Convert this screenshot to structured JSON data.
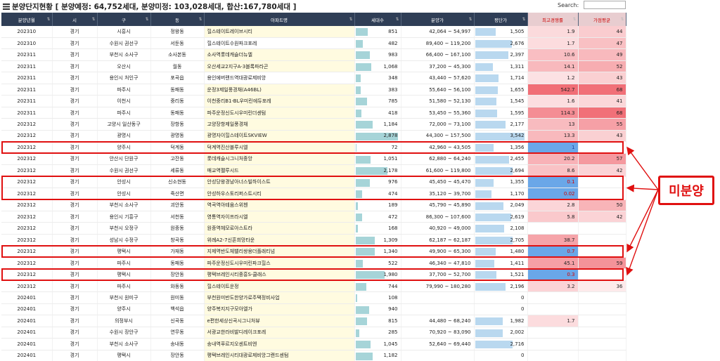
{
  "header": {
    "title": "분양단지현황 [ 분양예정: 64,752세대, 분양미정: 103,028세대, 합산:167,780세대 ]",
    "search_label": "Search:",
    "search_value": ""
  },
  "columns": [
    "분양년월",
    "시",
    "구",
    "동",
    "아파트명",
    "세대수",
    "분양가",
    "평단가",
    "최고경쟁률",
    "가점평균"
  ],
  "colors": {
    "header_bg": "#2f3e56",
    "highlight_border": "#e01010",
    "callout_text": "#e01010"
  },
  "rows": [
    {
      "ym": "202310",
      "si": "경기",
      "gu": "시흥시",
      "dong": "정왕동",
      "apt": "힐스테이트레이브시티",
      "units": "851",
      "price": "42,064 ~ 54,997",
      "ppa": "1,505",
      "comp": "1.9",
      "score": "44"
    },
    {
      "ym": "202310",
      "si": "경기",
      "gu": "수원시 권선구",
      "dong": "서둔동",
      "apt": "힐스테이트수원파크포레",
      "units": "482",
      "price": "89,400 ~ 119,200",
      "ppa": "2,676",
      "comp": "1.7",
      "score": "47"
    },
    {
      "ym": "202311",
      "si": "경기",
      "gu": "부천시 소사구",
      "dong": "소사본동",
      "apt": "소사역롯데캐슬더뉴엘",
      "units": "983",
      "price": "66,400 ~ 167,100",
      "ppa": "2,397",
      "comp": "10.6",
      "score": "49"
    },
    {
      "ym": "202311",
      "si": "경기",
      "gu": "오산시",
      "dong": "궐동",
      "apt": "오산세교2지구A-3블록파라곤",
      "units": "1,068",
      "price": "37,200 ~ 45,300",
      "ppa": "1,311",
      "comp": "14.1",
      "score": "52"
    },
    {
      "ym": "202311",
      "si": "경기",
      "gu": "용인시 처인구",
      "dong": "포곡읍",
      "apt": "용인에버랜드역대광로제비앙",
      "units": "348",
      "price": "43,440 ~ 57,620",
      "ppa": "1,714",
      "comp": "1.2",
      "score": "43"
    },
    {
      "ym": "202311",
      "si": "경기",
      "gu": "파주시",
      "dong": "동패동",
      "apt": "운정3제일풍경채(A46BL)",
      "units": "383",
      "price": "55,640 ~ 56,100",
      "ppa": "1,655",
      "comp": "542.7",
      "score": "68"
    },
    {
      "ym": "202311",
      "si": "경기",
      "gu": "이천시",
      "dong": "중리동",
      "apt": "이천중리B1-BL우미린에듀포레",
      "units": "785",
      "price": "51,580 ~ 52,130",
      "ppa": "1,545",
      "comp": "1.6",
      "score": "41"
    },
    {
      "ym": "202311",
      "si": "경기",
      "gu": "파주시",
      "dong": "동패동",
      "apt": "파주운정신도시우미린더센텀",
      "units": "418",
      "price": "53,450 ~ 55,360",
      "ppa": "1,595",
      "comp": "114.3",
      "score": "68"
    },
    {
      "ym": "202312",
      "si": "경기",
      "gu": "고양시 일산동구",
      "dong": "장항동",
      "apt": "고양장항제일풍경채",
      "units": "1,184",
      "price": "72,000 ~ 73,100",
      "ppa": "2,177",
      "comp": "13",
      "score": "55"
    },
    {
      "ym": "202312",
      "si": "경기",
      "gu": "광명시",
      "dong": "광명동",
      "apt": "광명자이힐스테이트SKVIEW",
      "units": "2,878",
      "price": "44,300 ~ 157,500",
      "ppa": "3,542",
      "comp": "13.3",
      "score": "43"
    },
    {
      "ym": "202312",
      "si": "경기",
      "gu": "양주시",
      "dong": "덕계동",
      "apt": "덕계역진산블루시엘",
      "units": "72",
      "price": "42,960 ~ 43,505",
      "ppa": "1,356",
      "comp": "1",
      "score": ""
    },
    {
      "ym": "202312",
      "si": "경기",
      "gu": "안산시 단원구",
      "dong": "고잔동",
      "apt": "롯데캐슬시그니처중앙",
      "units": "1,051",
      "price": "62,880 ~ 64,240",
      "ppa": "2,455",
      "comp": "20.2",
      "score": "57"
    },
    {
      "ym": "202312",
      "si": "경기",
      "gu": "수원시 권선구",
      "dong": "세류동",
      "apt": "매교역팰루시드",
      "units": "2,178",
      "price": "61,600 ~ 119,800",
      "ppa": "2,694",
      "comp": "8.6",
      "score": "42"
    },
    {
      "ym": "202312",
      "si": "경기",
      "gu": "안성시",
      "dong": "신소현동",
      "apt": "안성당왕경남아너스빌하이스트",
      "units": "976",
      "price": "45,450 ~ 45,470",
      "ppa": "1,355",
      "comp": "0.1",
      "score": ""
    },
    {
      "ym": "202312",
      "si": "경기",
      "gu": "안성시",
      "dong": "죽산면",
      "apt": "안성하우스토리퍼스트시티",
      "units": "474",
      "price": "35,120 ~ 39,700",
      "ppa": "1,170",
      "comp": "0.02",
      "score": ""
    },
    {
      "ym": "202312",
      "si": "경기",
      "gu": "부천시 소사구",
      "dong": "괴안동",
      "apt": "역곡역아테움스위첸",
      "units": "189",
      "price": "45,790 ~ 45,890",
      "ppa": "2,049",
      "comp": "2.8",
      "score": "50"
    },
    {
      "ym": "202312",
      "si": "경기",
      "gu": "용인시 기흥구",
      "dong": "서천동",
      "apt": "영통역자이프라시엘",
      "units": "472",
      "price": "86,300 ~ 107,600",
      "ppa": "2,619",
      "comp": "5.8",
      "score": "42"
    },
    {
      "ym": "202312",
      "si": "경기",
      "gu": "부천시 오정구",
      "dong": "원종동",
      "apt": "원종역헤모로아스트라",
      "units": "168",
      "price": "40,920 ~ 49,000",
      "ppa": "2,108",
      "comp": "",
      "score": ""
    },
    {
      "ym": "202312",
      "si": "경기",
      "gu": "성남시 수정구",
      "dong": "창곡동",
      "apt": "위례A2-7신혼희망타운",
      "units": "1,309",
      "price": "62,187 ~ 62,187",
      "ppa": "2,705",
      "comp": "38.7",
      "score": ""
    },
    {
      "ym": "202312",
      "si": "경기",
      "gu": "평택시",
      "dong": "가재동",
      "apt": "지제역반도체밸리쌍용더플래티넘",
      "units": "1,340",
      "price": "49,900 ~ 65,300",
      "ppa": "1,480",
      "comp": "0.7",
      "score": ""
    },
    {
      "ym": "202312",
      "si": "경기",
      "gu": "파주시",
      "dong": "동패동",
      "apt": "파주운정신도시우미린파크힐스",
      "units": "522",
      "price": "46,340 ~ 47,810",
      "ppa": "1,411",
      "comp": "45.1",
      "score": "59"
    },
    {
      "ym": "202312",
      "si": "경기",
      "gu": "평택시",
      "dong": "장안동",
      "apt": "평택브레인시티중흥S-클래스",
      "units": "1,980",
      "price": "37,700 ~ 52,700",
      "ppa": "1,521",
      "comp": "0.3",
      "score": ""
    },
    {
      "ym": "202312",
      "si": "경기",
      "gu": "파주시",
      "dong": "와동동",
      "apt": "힐스테이트운정",
      "units": "744",
      "price": "79,990 ~ 180,280",
      "ppa": "2,196",
      "comp": "3.2",
      "score": "36"
    },
    {
      "ym": "202401",
      "si": "경기",
      "gu": "부천시 원미구",
      "dong": "원미동",
      "apt": "부천원미반도한양가로주택정비사업",
      "units": "108",
      "price": "",
      "ppa": "0",
      "comp": "",
      "score": ""
    },
    {
      "ym": "202401",
      "si": "경기",
      "gu": "양주시",
      "dong": "백석읍",
      "apt": "양주복지지구모아엘가",
      "units": "940",
      "price": "",
      "ppa": "0",
      "comp": "",
      "score": ""
    },
    {
      "ym": "202401",
      "si": "경기",
      "gu": "의정부시",
      "dong": "신곡동",
      "apt": "e편한세상신곡시그니처뷰",
      "units": "815",
      "price": "44,480 ~ 68,240",
      "ppa": "1,982",
      "comp": "1.7",
      "score": ""
    },
    {
      "ym": "202401",
      "si": "경기",
      "gu": "수원시 장안구",
      "dong": "연무동",
      "apt": "서광교한라비발디레이크포레",
      "units": "285",
      "price": "70,920 ~ 83,090",
      "ppa": "2,002",
      "comp": "",
      "score": ""
    },
    {
      "ym": "202401",
      "si": "경기",
      "gu": "부천시 소사구",
      "dong": "송내동",
      "apt": "송내역푸르지오센트비엔",
      "units": "1,045",
      "price": "52,640 ~ 69,440",
      "ppa": "2,716",
      "comp": "",
      "score": ""
    },
    {
      "ym": "202401",
      "si": "경기",
      "gu": "평택시",
      "dong": "장안동",
      "apt": "평택브레인시티대광로제비앙그랜드센텀",
      "units": "1,182",
      "price": "",
      "ppa": "0",
      "comp": "",
      "score": ""
    }
  ],
  "highlighted_rows": [
    10,
    13,
    14,
    19,
    21
  ],
  "callout": {
    "label": "미분양"
  }
}
